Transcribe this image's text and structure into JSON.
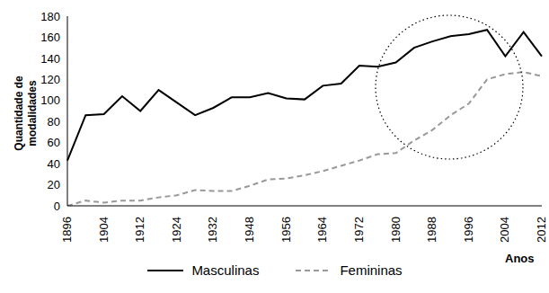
{
  "chart_data": {
    "type": "line",
    "x_label": "Anos",
    "y_label": "Quantidade de modalidades",
    "categories": [
      "1896",
      null,
      "1904",
      null,
      "1912",
      null,
      "1924",
      null,
      "1932",
      null,
      "1948",
      null,
      "1956",
      null,
      "1964",
      null,
      "1972",
      null,
      "1980",
      null,
      "1988",
      null,
      "1996",
      null,
      "2004",
      null,
      "2012"
    ],
    "series": [
      {
        "name": "Masculinas",
        "color": "#000000",
        "line_style": "solid",
        "values": [
          43,
          86,
          87,
          104,
          90,
          110,
          98,
          86,
          93,
          103,
          103,
          107,
          102,
          101,
          114,
          116,
          133,
          132,
          136,
          150,
          156,
          161,
          163,
          167,
          142,
          165,
          142
        ]
      },
      {
        "name": "Femininas",
        "color": "#999999",
        "line_style": "dashed",
        "values": [
          0,
          5,
          3,
          5,
          5,
          8,
          10,
          15,
          14,
          14,
          19,
          25,
          26,
          29,
          33,
          38,
          43,
          49,
          50,
          62,
          72,
          86,
          97,
          120,
          125,
          127,
          123
        ]
      }
    ],
    "ylim": [
      0,
      180
    ],
    "yticks": [
      0,
      20,
      40,
      60,
      80,
      100,
      120,
      140,
      160,
      180
    ],
    "grid": false
  }
}
